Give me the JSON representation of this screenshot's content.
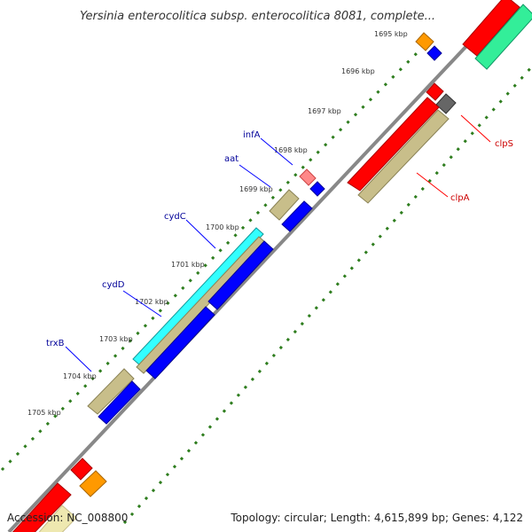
{
  "map": {
    "title": "Yersinia enterocolitica subsp. enterocolitica 8081, complete...",
    "accession": "Accession: NC_008800",
    "summary": "Topology: circular; Length: 4,615,899 bp; Genes: 4,122"
  },
  "ticks": [
    "1695 kbp",
    "1696 kbp",
    "1697 kbp",
    "1698 kbp",
    "1699 kbp",
    "1700 kbp",
    "1701 kbp",
    "1702 kbp",
    "1703 kbp",
    "1704 kbp",
    "1705 kbp"
  ],
  "genes": [
    {
      "name": "infA",
      "color": "#000099"
    },
    {
      "name": "aat",
      "color": "#000099"
    },
    {
      "name": "cydC",
      "color": "#000099"
    },
    {
      "name": "cydD",
      "color": "#000099"
    },
    {
      "name": "trxB",
      "color": "#000099"
    },
    {
      "name": "clpS",
      "color": "#cc0000"
    },
    {
      "name": "clpA",
      "color": "#cc0000"
    }
  ],
  "colors": {
    "backbone": "#888888",
    "tick_dots": "#2e7d1e",
    "red_cds": "#ff0000",
    "blue_cds": "#0000ff",
    "olive_cds": "#c8be8a",
    "cyan_cds": "#33ffff",
    "mint_cds": "#33ee99",
    "orange_cds": "#ff9900",
    "pink_cds": "#ff8888",
    "gray_cds": "#666666"
  }
}
